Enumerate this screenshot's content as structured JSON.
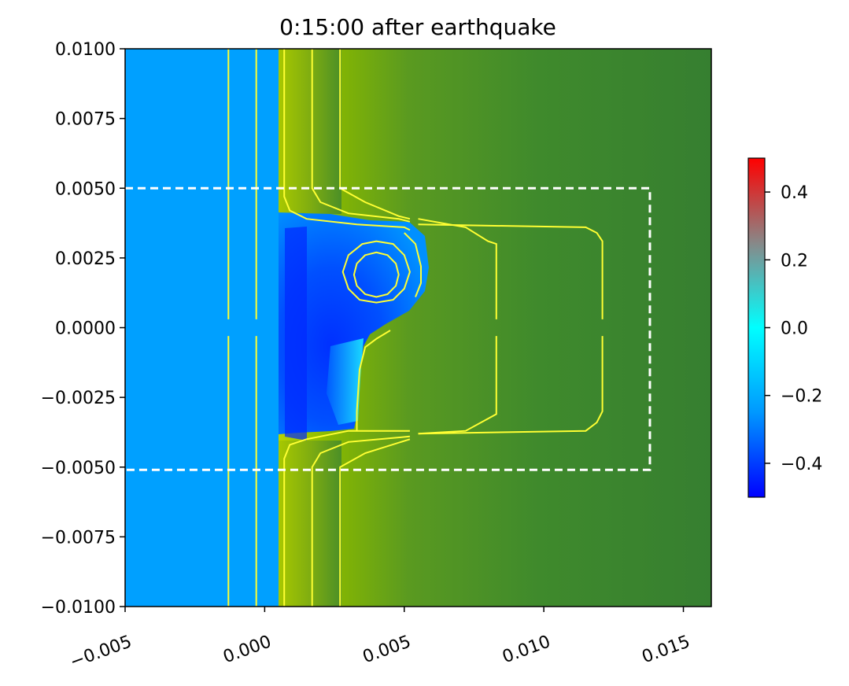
{
  "chart_data": {
    "type": "heatmap",
    "title": "0:15:00 after earthquake",
    "xlim": [
      -0.005,
      0.016
    ],
    "ylim": [
      -0.01,
      0.01
    ],
    "x_ticks": [
      {
        "value": -0.005,
        "label": "−0.005"
      },
      {
        "value": 0.0,
        "label": "0.000"
      },
      {
        "value": 0.005,
        "label": "0.005"
      },
      {
        "value": 0.01,
        "label": "0.010"
      },
      {
        "value": 0.015,
        "label": "0.015"
      }
    ],
    "y_ticks": [
      {
        "value": 0.01,
        "label": "0.0100"
      },
      {
        "value": 0.0075,
        "label": "0.0075"
      },
      {
        "value": 0.005,
        "label": "0.0050"
      },
      {
        "value": 0.0025,
        "label": "0.0025"
      },
      {
        "value": 0.0,
        "label": "0.0000"
      },
      {
        "value": -0.0025,
        "label": "−0.0025"
      },
      {
        "value": -0.005,
        "label": "−0.0050"
      },
      {
        "value": -0.0075,
        "label": "−0.0075"
      },
      {
        "value": -0.01,
        "label": "−0.0100"
      }
    ],
    "colorbar": {
      "range": [
        -0.5,
        0.5
      ],
      "ticks": [
        {
          "value": 0.4,
          "label": "0.4"
        },
        {
          "value": 0.2,
          "label": "0.2"
        },
        {
          "value": 0.0,
          "label": "0.0"
        },
        {
          "value": -0.2,
          "label": "−0.2"
        },
        {
          "value": -0.4,
          "label": "−0.4"
        }
      ],
      "colors": [
        "#0000ff",
        "#00ffff",
        "#888888",
        "#ff0000"
      ]
    },
    "regions": [
      {
        "name": "sea",
        "x": [
          -0.005,
          0.00045
        ],
        "y": [
          -0.01,
          0.01
        ],
        "color": "#00a0ff"
      },
      {
        "name": "land",
        "x": [
          0.00045,
          0.016
        ],
        "y": [
          -0.01,
          0.01
        ],
        "color": "#367f30"
      }
    ],
    "dashed_box": {
      "x": [
        -0.005,
        0.0138
      ],
      "y": [
        -0.0051,
        0.005
      ],
      "color": "#ffffff"
    },
    "contour_color": "#ffff33",
    "contours": [
      {
        "closed": false,
        "points": [
          [
            -0.0013,
            0.01
          ],
          [
            -0.0013,
            0.0003
          ]
        ]
      },
      {
        "closed": false,
        "points": [
          [
            -0.0013,
            -0.0003
          ],
          [
            -0.0013,
            -0.01
          ]
        ]
      },
      {
        "closed": false,
        "points": [
          [
            -0.0003,
            0.01
          ],
          [
            -0.0003,
            0.0003
          ]
        ]
      },
      {
        "closed": false,
        "points": [
          [
            -0.0003,
            -0.0003
          ],
          [
            -0.0003,
            -0.01
          ]
        ]
      },
      {
        "closed": false,
        "points": [
          [
            0.0007,
            0.01
          ],
          [
            0.0007,
            0.0047
          ],
          [
            0.0009,
            0.0042
          ],
          [
            0.0015,
            0.0039
          ],
          [
            0.0033,
            0.0037
          ],
          [
            0.005,
            0.0036
          ],
          [
            0.0052,
            0.0035
          ]
        ]
      },
      {
        "closed": false,
        "points": [
          [
            0.0017,
            0.01
          ],
          [
            0.0017,
            0.005
          ],
          [
            0.002,
            0.0045
          ],
          [
            0.003,
            0.0041
          ],
          [
            0.0048,
            0.0039
          ],
          [
            0.0052,
            0.0038
          ]
        ]
      },
      {
        "closed": false,
        "points": [
          [
            0.0027,
            0.01
          ],
          [
            0.0027,
            0.005
          ],
          [
            0.0036,
            0.0045
          ],
          [
            0.0048,
            0.004
          ],
          [
            0.0052,
            0.0039
          ]
        ]
      },
      {
        "closed": false,
        "points": [
          [
            0.0055,
            0.0037
          ],
          [
            0.0115,
            0.0036
          ],
          [
            0.0119,
            0.0034
          ],
          [
            0.0121,
            0.0031
          ],
          [
            0.0121,
            0.0003
          ]
        ]
      },
      {
        "closed": false,
        "points": [
          [
            0.0055,
            0.0039
          ],
          [
            0.0072,
            0.0036
          ],
          [
            0.008,
            0.0031
          ],
          [
            0.0083,
            0.003
          ],
          [
            0.0083,
            0.0003
          ]
        ]
      },
      {
        "closed": false,
        "points": [
          [
            0.0121,
            -0.0003
          ],
          [
            0.0121,
            -0.003
          ],
          [
            0.0119,
            -0.0034
          ],
          [
            0.0115,
            -0.0037
          ],
          [
            0.0055,
            -0.0038
          ]
        ]
      },
      {
        "closed": false,
        "points": [
          [
            0.0083,
            -0.0003
          ],
          [
            0.0083,
            -0.0031
          ],
          [
            0.0072,
            -0.0037
          ],
          [
            0.0055,
            -0.0038
          ]
        ]
      },
      {
        "closed": false,
        "points": [
          [
            0.0052,
            -0.0037
          ],
          [
            0.003,
            -0.0037
          ],
          [
            0.0015,
            -0.004
          ],
          [
            0.0009,
            -0.0042
          ],
          [
            0.0007,
            -0.0047
          ],
          [
            0.0007,
            -0.01
          ]
        ]
      },
      {
        "closed": false,
        "points": [
          [
            0.0052,
            -0.0039
          ],
          [
            0.003,
            -0.0041
          ],
          [
            0.002,
            -0.0045
          ],
          [
            0.0017,
            -0.005
          ],
          [
            0.0017,
            -0.01
          ]
        ]
      },
      {
        "closed": false,
        "points": [
          [
            0.0052,
            -0.004
          ],
          [
            0.0036,
            -0.0045
          ],
          [
            0.0027,
            -0.005
          ],
          [
            0.0027,
            -0.01
          ]
        ]
      },
      {
        "closed": false,
        "points": [
          [
            0.0033,
            -0.0037
          ],
          [
            0.0033,
            -0.003
          ],
          [
            0.0034,
            -0.0015
          ],
          [
            0.0036,
            -0.0007
          ],
          [
            0.004,
            -0.0004
          ],
          [
            0.0045,
            -0.0001
          ]
        ]
      },
      {
        "closed": true,
        "points": [
          [
            0.0036,
            0.0026
          ],
          [
            0.004,
            0.0027
          ],
          [
            0.0044,
            0.0026
          ],
          [
            0.0047,
            0.0023
          ],
          [
            0.0048,
            0.0019
          ],
          [
            0.0047,
            0.0015
          ],
          [
            0.0044,
            0.0012
          ],
          [
            0.004,
            0.0011
          ],
          [
            0.0036,
            0.0012
          ],
          [
            0.0033,
            0.0015
          ],
          [
            0.0032,
            0.0019
          ],
          [
            0.0033,
            0.0023
          ]
        ]
      },
      {
        "closed": true,
        "points": [
          [
            0.0035,
            0.003
          ],
          [
            0.004,
            0.0031
          ],
          [
            0.0046,
            0.003
          ],
          [
            0.005,
            0.0026
          ],
          [
            0.0052,
            0.002
          ],
          [
            0.005,
            0.0014
          ],
          [
            0.0046,
            0.001
          ],
          [
            0.004,
            0.0009
          ],
          [
            0.0034,
            0.001
          ],
          [
            0.003,
            0.0014
          ],
          [
            0.0028,
            0.002
          ],
          [
            0.003,
            0.0026
          ]
        ]
      },
      {
        "closed": false,
        "points": [
          [
            0.005,
            0.0034
          ],
          [
            0.0054,
            0.003
          ],
          [
            0.0056,
            0.0022
          ],
          [
            0.0056,
            0.0016
          ],
          [
            0.0054,
            0.0011
          ]
        ]
      }
    ]
  }
}
